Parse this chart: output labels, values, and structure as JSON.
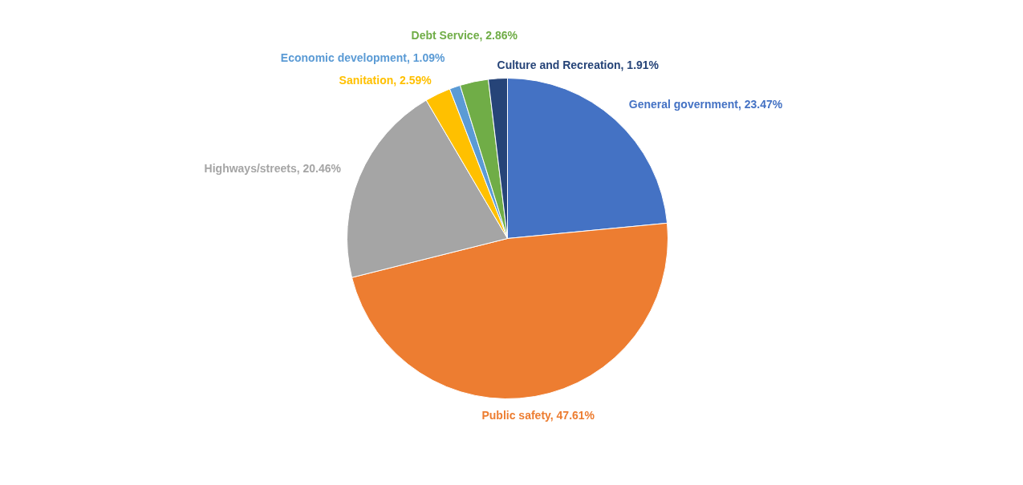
{
  "chart_data": {
    "type": "pie",
    "categories": [
      "General government",
      "Public safety",
      "Highways/streets",
      "Sanitation",
      "Economic development",
      "Debt Service",
      "Culture and Recreation"
    ],
    "values": [
      23.47,
      47.61,
      20.46,
      2.59,
      1.09,
      2.86,
      1.91
    ],
    "colors": [
      "#4472c4",
      "#ed7d31",
      "#a5a5a5",
      "#ffc000",
      "#5b9bd5",
      "#70ad47",
      "#264478"
    ],
    "value_labels": [
      "23.47%",
      "47.61%",
      "20.46%",
      "2.59%",
      "1.09%",
      "2.86%",
      "1.91%"
    ]
  }
}
